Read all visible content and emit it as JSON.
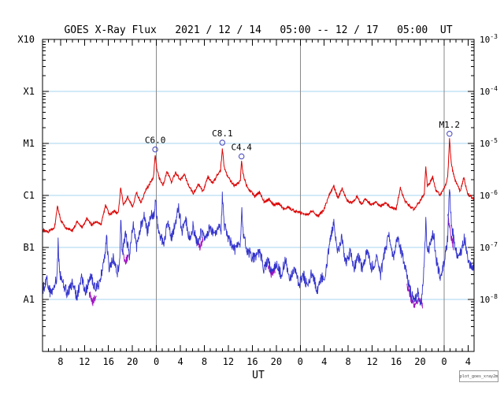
{
  "chart_data": {
    "type": "line",
    "title": "GOES X-Ray Flux   2021 / 12 / 14   05:00 -- 12 / 17   05:00  UT",
    "xlabel": "UT",
    "credit": "plot_goes_xray2m",
    "x_range": [
      0,
      72
    ],
    "hours_from": "2021-12-14 05:00 UT",
    "y_scale": "log",
    "y_range": [
      1e-09,
      0.001
    ],
    "grid": "horizontal-decades",
    "legend": "none",
    "gridline_color": "#a5d5f2",
    "day_line_color": "#888888",
    "frame_color": "#000000",
    "left_axis_labels": [
      {
        "label": "X10",
        "value": 0.001
      },
      {
        "label": "X1",
        "value": 0.0001
      },
      {
        "label": "M1",
        "value": 1e-05
      },
      {
        "label": "C1",
        "value": 1e-06
      },
      {
        "label": "B1",
        "value": 1e-07
      },
      {
        "label": "A1",
        "value": 1e-08
      }
    ],
    "right_axis_labels": [
      {
        "base": "10",
        "exp": "-3",
        "value": 0.001
      },
      {
        "base": "10",
        "exp": "-4",
        "value": 0.0001
      },
      {
        "base": "10",
        "exp": "-5",
        "value": 1e-05
      },
      {
        "base": "10",
        "exp": "-6",
        "value": 1e-06
      },
      {
        "base": "10",
        "exp": "-7",
        "value": 1e-07
      },
      {
        "base": "10",
        "exp": "-8",
        "value": 1e-08
      }
    ],
    "gridlines_y": [
      0.0001,
      1e-05,
      1e-06,
      1e-07,
      1e-08
    ],
    "day_boundaries": [
      19,
      43,
      67
    ],
    "x_ticks": [
      {
        "t": 3,
        "label": "8"
      },
      {
        "t": 7,
        "label": "12"
      },
      {
        "t": 11,
        "label": "16"
      },
      {
        "t": 15,
        "label": "20"
      },
      {
        "t": 19,
        "label": "0"
      },
      {
        "t": 23,
        "label": "4"
      },
      {
        "t": 27,
        "label": "8"
      },
      {
        "t": 31,
        "label": "12"
      },
      {
        "t": 35,
        "label": "16"
      },
      {
        "t": 39,
        "label": "20"
      },
      {
        "t": 43,
        "label": "0"
      },
      {
        "t": 47,
        "label": "4"
      },
      {
        "t": 51,
        "label": "8"
      },
      {
        "t": 55,
        "label": "12"
      },
      {
        "t": 59,
        "label": "16"
      },
      {
        "t": 63,
        "label": "20"
      },
      {
        "t": 67,
        "label": "0"
      },
      {
        "t": 71,
        "label": "4"
      }
    ],
    "minor_tick_hours": 1,
    "annotations": [
      {
        "label": "C6.0",
        "t": 18.8,
        "value": 6e-06
      },
      {
        "label": "C8.1",
        "t": 30.0,
        "value": 8.1e-06
      },
      {
        "label": "C4.4",
        "t": 33.2,
        "value": 4.4e-06
      },
      {
        "label": "M1.2",
        "t": 67.9,
        "value": 1.2e-05
      }
    ],
    "marker_color": "#5050c0",
    "series": [
      {
        "id": "purple-series",
        "color": "#a012c0",
        "width": 0.9,
        "noise": 0.08,
        "segments": [
          [
            [
              7.8,
              1.3e-08
            ],
            [
              8.4,
              9e-09
            ],
            [
              9.0,
              1.2e-08
            ]
          ],
          [
            [
              13.2,
              9e-08
            ],
            [
              13.8,
              5e-08
            ],
            [
              14.3,
              7e-08
            ]
          ],
          [
            [
              25.6,
              1.6e-07
            ],
            [
              26.2,
              1e-07
            ],
            [
              26.8,
              1.4e-07
            ]
          ],
          [
            [
              37.6,
              4.5e-08
            ],
            [
              38.2,
              3e-08
            ],
            [
              38.8,
              3.8e-08
            ]
          ],
          [
            [
              60.8,
              1.8e-08
            ],
            [
              61.5,
              1e-08
            ],
            [
              62.2,
              7e-09
            ],
            [
              62.9,
              1.1e-08
            ],
            [
              63.4,
              8e-09
            ]
          ],
          [
            [
              67.6,
              4e-07
            ],
            [
              68.1,
              1.8e-07
            ],
            [
              68.6,
              1e-07
            ]
          ]
        ]
      },
      {
        "id": "blue-series",
        "color": "#3333cc",
        "width": 0.9,
        "noise": 0.11,
        "points": [
          [
            0,
            1.5e-08
          ],
          [
            0.7,
            2.5e-08
          ],
          [
            1.4,
            1.2e-08
          ],
          [
            2.1,
            1.9e-08
          ],
          [
            2.45,
            3e-08
          ],
          [
            2.6,
            1.2e-07
          ],
          [
            2.8,
            3.5e-08
          ],
          [
            3.4,
            2e-08
          ],
          [
            4.2,
            1.3e-08
          ],
          [
            5,
            2.2e-08
          ],
          [
            5.7,
            1.1e-08
          ],
          [
            6.5,
            2.5e-08
          ],
          [
            7.2,
            1.4e-08
          ],
          [
            8,
            3e-08
          ],
          [
            8.7,
            1.6e-08
          ],
          [
            9.5,
            2e-08
          ],
          [
            10.2,
            5e-08
          ],
          [
            10.7,
            1.5e-07
          ],
          [
            11.1,
            4e-08
          ],
          [
            11.8,
            6e-08
          ],
          [
            12.5,
            3.2e-08
          ],
          [
            12.9,
            6e-08
          ],
          [
            13.05,
            3.5e-07
          ],
          [
            13.3,
            8e-08
          ],
          [
            13.9,
            1.8e-07
          ],
          [
            14.5,
            7e-08
          ],
          [
            15.1,
            3e-07
          ],
          [
            15.7,
            1e-07
          ],
          [
            16.3,
            2.3e-07
          ],
          [
            16.9,
            4e-07
          ],
          [
            17.5,
            2e-07
          ],
          [
            18.1,
            4.5e-07
          ],
          [
            18.6,
            4e-07
          ],
          [
            18.85,
            9e-07
          ],
          [
            19.15,
            3e-07
          ],
          [
            19.7,
            1.6e-07
          ],
          [
            20.3,
            1.2e-07
          ],
          [
            20.9,
            3.5e-07
          ],
          [
            21.5,
            1.5e-07
          ],
          [
            22.1,
            3e-07
          ],
          [
            22.7,
            5.5e-07
          ],
          [
            23.3,
            2e-07
          ],
          [
            23.9,
            3.5e-07
          ],
          [
            24.5,
            1.5e-07
          ],
          [
            25.1,
            2.5e-07
          ],
          [
            25.8,
            1.2e-07
          ],
          [
            26.5,
            2e-07
          ],
          [
            27.2,
            1.3e-07
          ],
          [
            27.9,
            2.5e-07
          ],
          [
            28.7,
            1.6e-07
          ],
          [
            29.4,
            2.4e-07
          ],
          [
            29.8,
            2.2e-07
          ],
          [
            30.0,
            1e-06
          ],
          [
            30.3,
            2.8e-07
          ],
          [
            30.9,
            1.5e-07
          ],
          [
            31.5,
            1.2e-07
          ],
          [
            32.1,
            9e-08
          ],
          [
            32.7,
            1.2e-07
          ],
          [
            33.05,
            1.3e-07
          ],
          [
            33.25,
            5e-07
          ],
          [
            33.55,
            1.6e-07
          ],
          [
            34.1,
            9e-08
          ],
          [
            34.8,
            7e-08
          ],
          [
            35.5,
            6e-08
          ],
          [
            36.2,
            8.5e-08
          ],
          [
            36.9,
            4e-08
          ],
          [
            37.6,
            5.5e-08
          ],
          [
            38.3,
            3.5e-08
          ],
          [
            39,
            5e-08
          ],
          [
            39.8,
            3e-08
          ],
          [
            40.5,
            6e-08
          ],
          [
            41.2,
            2.5e-08
          ],
          [
            42,
            4e-08
          ],
          [
            42.8,
            2e-08
          ],
          [
            43.5,
            3e-08
          ],
          [
            44.2,
            1.8e-08
          ],
          [
            45,
            3.5e-08
          ],
          [
            45.8,
            1.5e-08
          ],
          [
            46.5,
            2.5e-08
          ],
          [
            47.2,
            2.8e-08
          ],
          [
            47.9,
            1.2e-07
          ],
          [
            48.6,
            2.8e-07
          ],
          [
            49.2,
            8e-08
          ],
          [
            49.9,
            1.5e-07
          ],
          [
            50.6,
            5e-08
          ],
          [
            51.3,
            8e-08
          ],
          [
            52,
            4e-08
          ],
          [
            52.7,
            7e-08
          ],
          [
            53.4,
            3.5e-08
          ],
          [
            54.1,
            9e-08
          ],
          [
            54.9,
            4e-08
          ],
          [
            55.7,
            6e-08
          ],
          [
            56.4,
            3e-08
          ],
          [
            57.1,
            8e-08
          ],
          [
            57.8,
            1.8e-07
          ],
          [
            58.5,
            6e-08
          ],
          [
            59.2,
            1.5e-07
          ],
          [
            59.9,
            8e-08
          ],
          [
            60.6,
            4e-08
          ],
          [
            61.3,
            1.5e-08
          ],
          [
            62,
            9e-09
          ],
          [
            62.6,
            1.4e-08
          ],
          [
            63.2,
            8e-09
          ],
          [
            63.7,
            5e-08
          ],
          [
            63.95,
            3e-07
          ],
          [
            64.2,
            8e-08
          ],
          [
            64.8,
            1.2e-07
          ],
          [
            65.2,
            2e-07
          ],
          [
            65.8,
            5e-08
          ],
          [
            66.4,
            2.5e-08
          ],
          [
            67.1,
            6e-08
          ],
          [
            67.6,
            1.5e-07
          ],
          [
            67.9,
            1.5e-06
          ],
          [
            68.2,
            3e-07
          ],
          [
            68.8,
            1e-07
          ],
          [
            69.4,
            6e-08
          ],
          [
            70,
            1e-07
          ],
          [
            70.4,
            1.6e-07
          ],
          [
            71,
            6e-08
          ],
          [
            71.6,
            4e-08
          ],
          [
            72,
            5e-08
          ]
        ]
      },
      {
        "id": "red-series",
        "color": "#dd0000",
        "width": 1.0,
        "noise": 0.028,
        "points": [
          [
            0,
            2.2e-07
          ],
          [
            1,
            2e-07
          ],
          [
            2,
            2.4e-07
          ],
          [
            2.5,
            6.5e-07
          ],
          [
            3.0,
            3.4e-07
          ],
          [
            4,
            2.3e-07
          ],
          [
            5,
            2.1e-07
          ],
          [
            5.8,
            3.2e-07
          ],
          [
            6.6,
            2.4e-07
          ],
          [
            7.4,
            3.6e-07
          ],
          [
            8.2,
            2.7e-07
          ],
          [
            9,
            3.2e-07
          ],
          [
            9.8,
            2.8e-07
          ],
          [
            10.5,
            6.5e-07
          ],
          [
            11.2,
            4.2e-07
          ],
          [
            12,
            5e-07
          ],
          [
            12.6,
            4.4e-07
          ],
          [
            13.05,
            1.4e-06
          ],
          [
            13.5,
            6.5e-07
          ],
          [
            14.2,
            9.5e-07
          ],
          [
            15,
            6e-07
          ],
          [
            15.7,
            1.15e-06
          ],
          [
            16.4,
            7e-07
          ],
          [
            17.1,
            1.2e-06
          ],
          [
            17.9,
            1.7e-06
          ],
          [
            18.5,
            2.2e-06
          ],
          [
            18.8,
            6e-06
          ],
          [
            19.1,
            3e-06
          ],
          [
            19.6,
            2e-06
          ],
          [
            20.1,
            1.6e-06
          ],
          [
            20.8,
            2.9e-06
          ],
          [
            21.5,
            1.8e-06
          ],
          [
            22.2,
            2.7e-06
          ],
          [
            23,
            2e-06
          ],
          [
            23.7,
            2.5e-06
          ],
          [
            24.4,
            1.5e-06
          ],
          [
            25.2,
            1.1e-06
          ],
          [
            26,
            1.6e-06
          ],
          [
            26.8,
            1.2e-06
          ],
          [
            27.6,
            2.3e-06
          ],
          [
            28.4,
            1.7e-06
          ],
          [
            29.3,
            2.6e-06
          ],
          [
            29.7,
            3e-06
          ],
          [
            30.0,
            8.1e-06
          ],
          [
            30.3,
            3.5e-06
          ],
          [
            30.8,
            2.4e-06
          ],
          [
            31.4,
            1.9e-06
          ],
          [
            32,
            1.55e-06
          ],
          [
            32.6,
            1.7e-06
          ],
          [
            33.0,
            2e-06
          ],
          [
            33.2,
            4.4e-06
          ],
          [
            33.5,
            2.5e-06
          ],
          [
            34,
            1.6e-06
          ],
          [
            34.6,
            1.25e-06
          ],
          [
            35.4,
            9.5e-07
          ],
          [
            36.2,
            1.15e-06
          ],
          [
            37,
            7.5e-07
          ],
          [
            37.8,
            8.5e-07
          ],
          [
            38.6,
            6.5e-07
          ],
          [
            39.4,
            7e-07
          ],
          [
            40.2,
            5.5e-07
          ],
          [
            41,
            6e-07
          ],
          [
            42,
            5e-07
          ],
          [
            43,
            4.6e-07
          ],
          [
            44,
            4.2e-07
          ],
          [
            45,
            5e-07
          ],
          [
            46,
            4e-07
          ],
          [
            47,
            5.5e-07
          ],
          [
            47.8,
            1e-06
          ],
          [
            48.6,
            1.5e-06
          ],
          [
            49.3,
            9e-07
          ],
          [
            50,
            1.35e-06
          ],
          [
            50.8,
            8e-07
          ],
          [
            51.6,
            7e-07
          ],
          [
            52.4,
            9.5e-07
          ],
          [
            53.2,
            7e-07
          ],
          [
            54,
            8.5e-07
          ],
          [
            54.8,
            6.5e-07
          ],
          [
            55.6,
            7.5e-07
          ],
          [
            56.4,
            6e-07
          ],
          [
            57.2,
            7.2e-07
          ],
          [
            58,
            6e-07
          ],
          [
            59,
            5.5e-07
          ],
          [
            59.7,
            1.4e-06
          ],
          [
            60.4,
            8e-07
          ],
          [
            61.1,
            6.5e-07
          ],
          [
            61.9,
            5.5e-07
          ],
          [
            62.7,
            7e-07
          ],
          [
            63.3,
            9e-07
          ],
          [
            63.7,
            1.1e-06
          ],
          [
            63.95,
            3.6e-06
          ],
          [
            64.2,
            1.5e-06
          ],
          [
            64.7,
            1.8e-06
          ],
          [
            65.1,
            2.3e-06
          ],
          [
            65.6,
            1.3e-06
          ],
          [
            66.3,
            1e-06
          ],
          [
            67.1,
            1.4e-06
          ],
          [
            67.6,
            2.2e-06
          ],
          [
            67.9,
            1.2e-05
          ],
          [
            68.2,
            4e-06
          ],
          [
            68.7,
            2.2e-06
          ],
          [
            69.2,
            1.6e-06
          ],
          [
            69.7,
            1.2e-06
          ],
          [
            70.3,
            2.2e-06
          ],
          [
            70.9,
            1.1e-06
          ],
          [
            71.5,
            9.5e-07
          ],
          [
            72,
            8.5e-07
          ]
        ]
      }
    ]
  }
}
